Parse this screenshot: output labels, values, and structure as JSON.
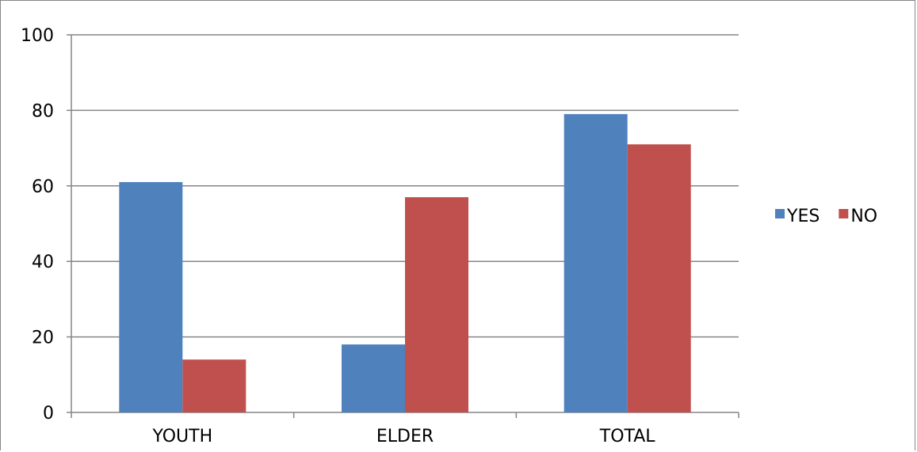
{
  "chart_data": {
    "type": "bar",
    "title": "",
    "xlabel": "",
    "ylabel": "",
    "categories": [
      "YOUTH",
      "ELDER",
      "TOTAL"
    ],
    "series": [
      {
        "name": "YES",
        "color": "#4f81bd",
        "values": [
          61,
          18,
          79
        ]
      },
      {
        "name": "NO",
        "color": "#c0504d",
        "values": [
          14,
          57,
          71
        ]
      }
    ],
    "ylim": [
      0,
      100
    ],
    "yticks": [
      "0",
      "20",
      "40",
      "60",
      "80",
      "100"
    ],
    "ytick_values": [
      0,
      20,
      40,
      60,
      80,
      100
    ],
    "grid": true,
    "gridline_color": "#868686",
    "legend_position": "right"
  }
}
